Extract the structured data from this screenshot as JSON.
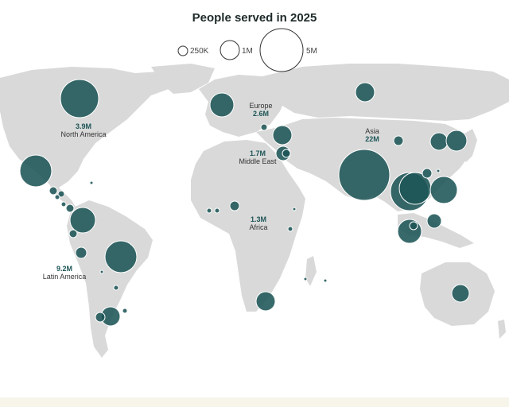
{
  "title": "People served in 2025",
  "legend": [
    {
      "label": "250K",
      "value": 250000
    },
    {
      "label": "1M",
      "value": 1000000
    },
    {
      "label": "5M",
      "value": 5000000
    }
  ],
  "regions": [
    {
      "name": "North America",
      "value": "3.9M"
    },
    {
      "name": "Europe",
      "value": "2.6M"
    },
    {
      "name": "Middle East",
      "value": "1.7M"
    },
    {
      "name": "Asia",
      "value": "22M"
    },
    {
      "name": "Africa",
      "value": "1.3M"
    },
    {
      "name": "Latin America",
      "value": "9.2M"
    }
  ],
  "colors": {
    "bubble": "#1e5557",
    "land": "#d9d9d9",
    "footer": "#f7f5ea"
  }
}
